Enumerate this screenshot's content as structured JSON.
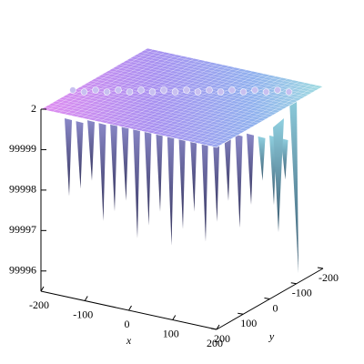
{
  "chart_data": {
    "type": "surface3d",
    "xlabel": "x",
    "ylabel": "y",
    "xlim": [
      -200,
      200
    ],
    "xticks": [
      -200,
      -100,
      0,
      100,
      200
    ],
    "ylim": [
      -200,
      200
    ],
    "yticks": [
      -200,
      -100,
      0,
      100,
      200
    ],
    "zlim": [
      1.999955,
      2
    ],
    "zticks": [
      2,
      {
        "value": 1.99999,
        "label": "99999"
      },
      {
        "value": 1.99998,
        "label": "99998"
      },
      {
        "value": 1.99997,
        "label": "99997"
      },
      {
        "value": 1.99996,
        "label": "99996"
      }
    ]
  }
}
